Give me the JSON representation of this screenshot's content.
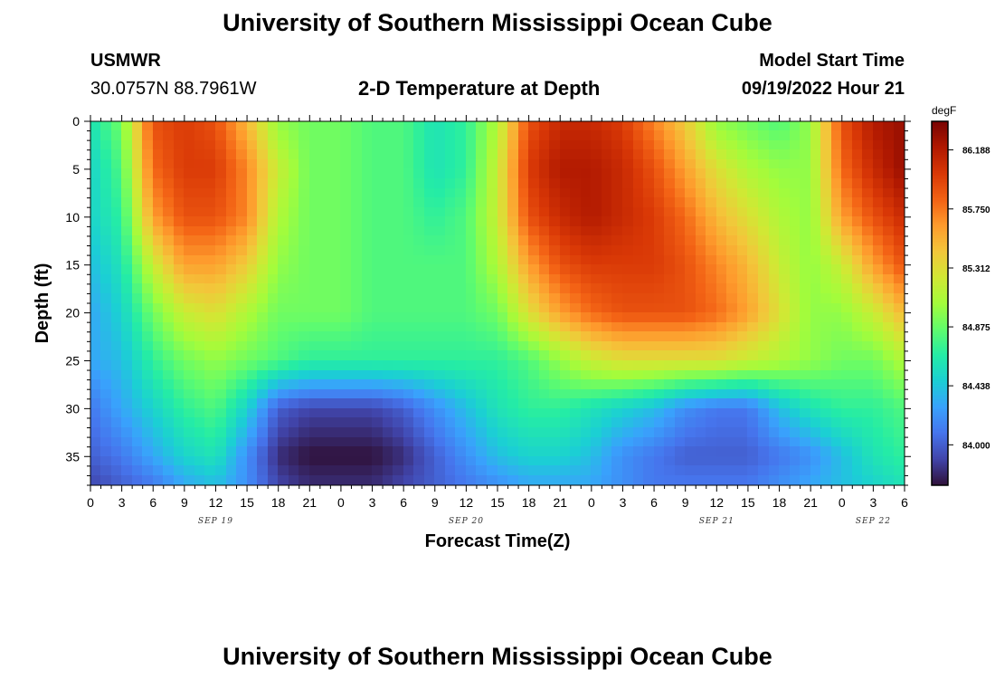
{
  "header": {
    "title_top": "University of Southern Mississippi Ocean Cube",
    "title_bottom": "University of Southern Mississippi Ocean Cube",
    "station": "USMWR",
    "coords": "30.0757N  88.7961W",
    "plot_title": "2-D Temperature at Depth",
    "model_label": "Model Start Time",
    "model_time": "09/19/2022 Hour 21"
  },
  "colors": {
    "colormap": [
      "#30123b",
      "#4145ab",
      "#4675ed",
      "#39a2fc",
      "#1bcfd4",
      "#24eca6",
      "#61fc6c",
      "#a4fc3b",
      "#d1e834",
      "#f3c63a",
      "#fe9b2d",
      "#f36315",
      "#d93806",
      "#b11901",
      "#7a0402"
    ]
  },
  "chart_data": {
    "type": "heatmap",
    "title": "2-D Temperature at Depth",
    "xlabel": "Forecast Time(Z)",
    "ylabel": "Depth (ft)",
    "units": "degF",
    "xlim_hours": [
      0,
      78
    ],
    "x_tick_labels": [
      "0",
      "3",
      "6",
      "9",
      "12",
      "15",
      "18",
      "21",
      "0",
      "3",
      "6",
      "9",
      "12",
      "15",
      "18",
      "21",
      "0",
      "3",
      "6",
      "9",
      "12",
      "15",
      "18",
      "21",
      "0",
      "3",
      "6"
    ],
    "date_labels": [
      "SEP 19",
      "SEP 20",
      "SEP 21",
      "SEP 22"
    ],
    "ylim": [
      0,
      38
    ],
    "y_ticks": [
      0,
      5,
      10,
      15,
      20,
      25,
      30,
      35
    ],
    "colorbar_range": [
      83.7,
      86.4
    ],
    "colorbar_ticks": [
      "86.188",
      "85.750",
      "85.312",
      "84.875",
      "84.438",
      "84.000"
    ],
    "colorbar_tick_values": [
      86.188,
      85.75,
      85.312,
      84.875,
      84.438,
      84.0
    ],
    "depths": [
      0,
      5,
      10,
      15,
      20,
      25,
      30,
      35,
      38
    ],
    "times": [
      0,
      3,
      6,
      9,
      12,
      15,
      18,
      21,
      24,
      27,
      30,
      33,
      36,
      39,
      42,
      45,
      48,
      51,
      54,
      57,
      60,
      63,
      66,
      69,
      72,
      75,
      78
    ],
    "temperature_grid": [
      [
        84.6,
        84.9,
        85.9,
        86.0,
        85.9,
        85.5,
        85.0,
        84.9,
        84.9,
        84.8,
        84.8,
        84.6,
        84.7,
        85.1,
        85.9,
        86.1,
        86.1,
        86.0,
        85.7,
        85.4,
        85.0,
        84.9,
        84.8,
        85.0,
        85.9,
        86.2,
        86.3
      ],
      [
        84.5,
        84.8,
        85.8,
        86.0,
        86.0,
        85.7,
        85.2,
        84.9,
        84.9,
        84.8,
        84.8,
        84.6,
        84.7,
        85.2,
        86.0,
        86.2,
        86.2,
        86.1,
        85.9,
        85.6,
        85.3,
        85.1,
        85.0,
        85.0,
        85.8,
        86.1,
        86.3
      ],
      [
        84.5,
        84.7,
        85.6,
        85.9,
        85.9,
        85.7,
        85.1,
        84.9,
        84.9,
        84.8,
        84.8,
        84.7,
        84.8,
        85.2,
        85.9,
        86.1,
        86.2,
        86.1,
        86.0,
        85.8,
        85.5,
        85.3,
        85.1,
        85.0,
        85.6,
        85.9,
        86.1
      ],
      [
        84.4,
        84.6,
        85.2,
        85.6,
        85.6,
        85.4,
        85.0,
        84.9,
        84.9,
        84.8,
        84.8,
        84.8,
        84.8,
        85.1,
        85.6,
        85.9,
        86.0,
        86.0,
        86.0,
        85.9,
        85.7,
        85.5,
        85.2,
        85.0,
        85.2,
        85.6,
        85.9
      ],
      [
        84.3,
        84.5,
        84.9,
        85.2,
        85.3,
        85.1,
        84.9,
        84.9,
        84.9,
        84.8,
        84.8,
        84.8,
        84.8,
        84.9,
        85.3,
        85.6,
        85.8,
        85.9,
        85.9,
        85.9,
        85.8,
        85.6,
        85.3,
        85.0,
        85.0,
        85.2,
        85.5
      ],
      [
        84.3,
        84.4,
        84.7,
        84.9,
        85.0,
        84.9,
        84.8,
        84.7,
        84.7,
        84.7,
        84.7,
        84.7,
        84.7,
        84.7,
        84.8,
        85.0,
        85.2,
        85.3,
        85.3,
        85.3,
        85.3,
        85.2,
        85.1,
        85.0,
        84.9,
        84.9,
        85.1
      ],
      [
        84.1,
        84.3,
        84.5,
        84.7,
        84.8,
        84.5,
        84.0,
        83.9,
        83.9,
        83.9,
        84.0,
        84.2,
        84.4,
        84.6,
        84.7,
        84.7,
        84.6,
        84.5,
        84.4,
        84.2,
        84.1,
        84.1,
        84.4,
        84.6,
        84.7,
        84.7,
        84.8
      ],
      [
        84.0,
        84.1,
        84.3,
        84.5,
        84.6,
        84.2,
        83.8,
        83.7,
        83.7,
        83.7,
        83.8,
        84.0,
        84.2,
        84.4,
        84.5,
        84.5,
        84.4,
        84.2,
        84.1,
        84.0,
        84.0,
        84.0,
        84.1,
        84.2,
        84.4,
        84.6,
        84.7
      ],
      [
        83.9,
        84.0,
        84.1,
        84.3,
        84.4,
        84.2,
        83.9,
        83.8,
        83.8,
        83.8,
        83.9,
        84.0,
        84.1,
        84.2,
        84.3,
        84.3,
        84.3,
        84.2,
        84.1,
        84.1,
        84.1,
        84.1,
        84.2,
        84.3,
        84.4,
        84.5,
        84.6
      ]
    ]
  }
}
